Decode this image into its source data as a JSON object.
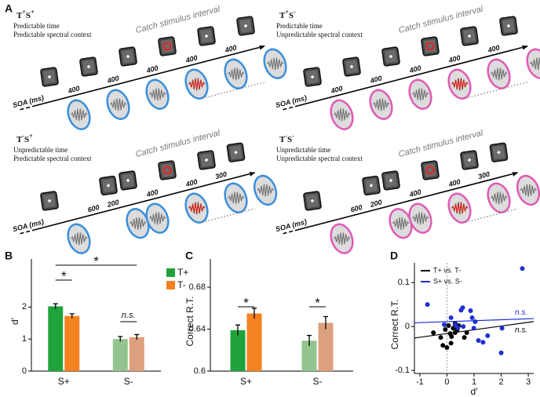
{
  "figure_a": {
    "label": "A",
    "panels": [
      {
        "title": [
          "T",
          "+",
          "S",
          "+"
        ],
        "lines": [
          "Predictable time",
          "Predictable spectral context"
        ],
        "catch_label": "Catch stimulus interval",
        "axis_label": "SOA (ms)",
        "soa": [
          400,
          400,
          400,
          400,
          400
        ],
        "ellipse_color": "#3b8fdb"
      },
      {
        "title": [
          "T",
          "+",
          "S",
          "-"
        ],
        "lines": [
          "Predictable time",
          "Unpredictable spectral context"
        ],
        "catch_label": "Catch stimulus interval",
        "axis_label": "SOA (ms)",
        "soa": [
          400,
          400,
          400,
          400,
          400
        ],
        "ellipse_color": "#e05bb5"
      },
      {
        "title": [
          "T",
          "-",
          "S",
          "+"
        ],
        "lines": [
          "Unpredictable time",
          "Predictable spectral context"
        ],
        "catch_label": "Catch stimulus interval",
        "axis_label": "SOA (ms)",
        "soa": [
          600,
          200,
          400,
          400,
          300
        ],
        "ellipse_color": "#3b8fdb"
      },
      {
        "title": [
          "T",
          "-",
          "S",
          "-"
        ],
        "lines": [
          "Unpredictable time",
          "Unpredictable spectral context"
        ],
        "catch_label": "Catch stimulus interval",
        "axis_label": "SOA (ms)",
        "soa": [
          600,
          200,
          400,
          400,
          300
        ],
        "ellipse_color": "#e05bb5"
      }
    ]
  },
  "chart_data": [
    {
      "type": "bar",
      "panel_label": "B",
      "ylabel": "d′",
      "categories": [
        "S+",
        "S-"
      ],
      "series": [
        {
          "name": "T+",
          "colors": [
            "#20a33a",
            "#93c48f"
          ],
          "values": [
            2.02,
            1.0
          ],
          "errors": [
            0.08,
            0.08
          ]
        },
        {
          "name": "T-",
          "colors": [
            "#f58220",
            "#dca07e"
          ],
          "values": [
            1.72,
            1.06
          ],
          "errors": [
            0.07,
            0.08
          ]
        }
      ],
      "ylim": [
        0,
        3.5
      ],
      "yticks": [
        0,
        1,
        2
      ],
      "annotations": [
        "*",
        "*",
        "n.s."
      ]
    },
    {
      "type": "bar",
      "panel_label": "C",
      "ylabel": "Correct R.T.",
      "categories": [
        "S+",
        "S-"
      ],
      "series": [
        {
          "name": "T+",
          "colors": [
            "#20a33a",
            "#93c48f"
          ],
          "values": [
            0.639,
            0.629
          ],
          "errors": [
            0.005,
            0.005
          ]
        },
        {
          "name": "T-",
          "colors": [
            "#f58220",
            "#dca07e"
          ],
          "values": [
            0.655,
            0.646
          ],
          "errors": [
            0.005,
            0.006
          ]
        }
      ],
      "ylim": [
        0.6,
        0.707
      ],
      "yticks": [
        0.6,
        0.64,
        0.68
      ],
      "annotations": [
        "*",
        "*"
      ]
    },
    {
      "type": "scatter",
      "panel_label": "D",
      "xlabel": "d′",
      "ylabel": "Correct R.T.",
      "xlim": [
        -1.2,
        3.2
      ],
      "ylim": [
        -0.107,
        0.145
      ],
      "xticks": [
        -1,
        0,
        1,
        2,
        3
      ],
      "yticks": [
        -0.1,
        0,
        0.1
      ],
      "series": [
        {
          "name": "T+ vs. T-",
          "color": "#000000",
          "x": [
            -0.5,
            -0.23,
            -0.15,
            0,
            0.15,
            0.17,
            0.3,
            0.38,
            0.23,
            0.43,
            0.06,
            -0.06,
            0.73,
            0.64,
            0.3,
            0.12
          ],
          "values": [
            -0.014,
            -0.025,
            -0.043,
            -0.048,
            -0.038,
            -0.023,
            -0.014,
            -0.007,
            -0.004,
            0.002,
            0.002,
            -0.007,
            -0.014,
            -0.025,
            0.007,
            -0.016
          ],
          "fit": {
            "slope": 0.0085,
            "intercept": -0.016
          },
          "fit_label": "n.s."
        },
        {
          "name": "S+ vs. S-",
          "color": "#1f2fd0",
          "x": [
            -0.72,
            2.78,
            0.52,
            0.58,
            0.87,
            0.93,
            1.04,
            0.99,
            0.6,
            0.3,
            0.4,
            1.16,
            1.33,
            1.5,
            2.03,
            2.0,
            0.15,
            -0.1
          ],
          "values": [
            0.05,
            0.132,
            0.037,
            0.043,
            0.036,
            0.02,
            0.011,
            -0.004,
            0,
            0.004,
            -0.003,
            -0.032,
            -0.036,
            -0.021,
            -0.004,
            -0.06,
            0.02,
            0.004
          ],
          "fit": {
            "slope": 0.0022,
            "intercept": 0.011
          },
          "fit_label": "n.s."
        }
      ]
    }
  ]
}
